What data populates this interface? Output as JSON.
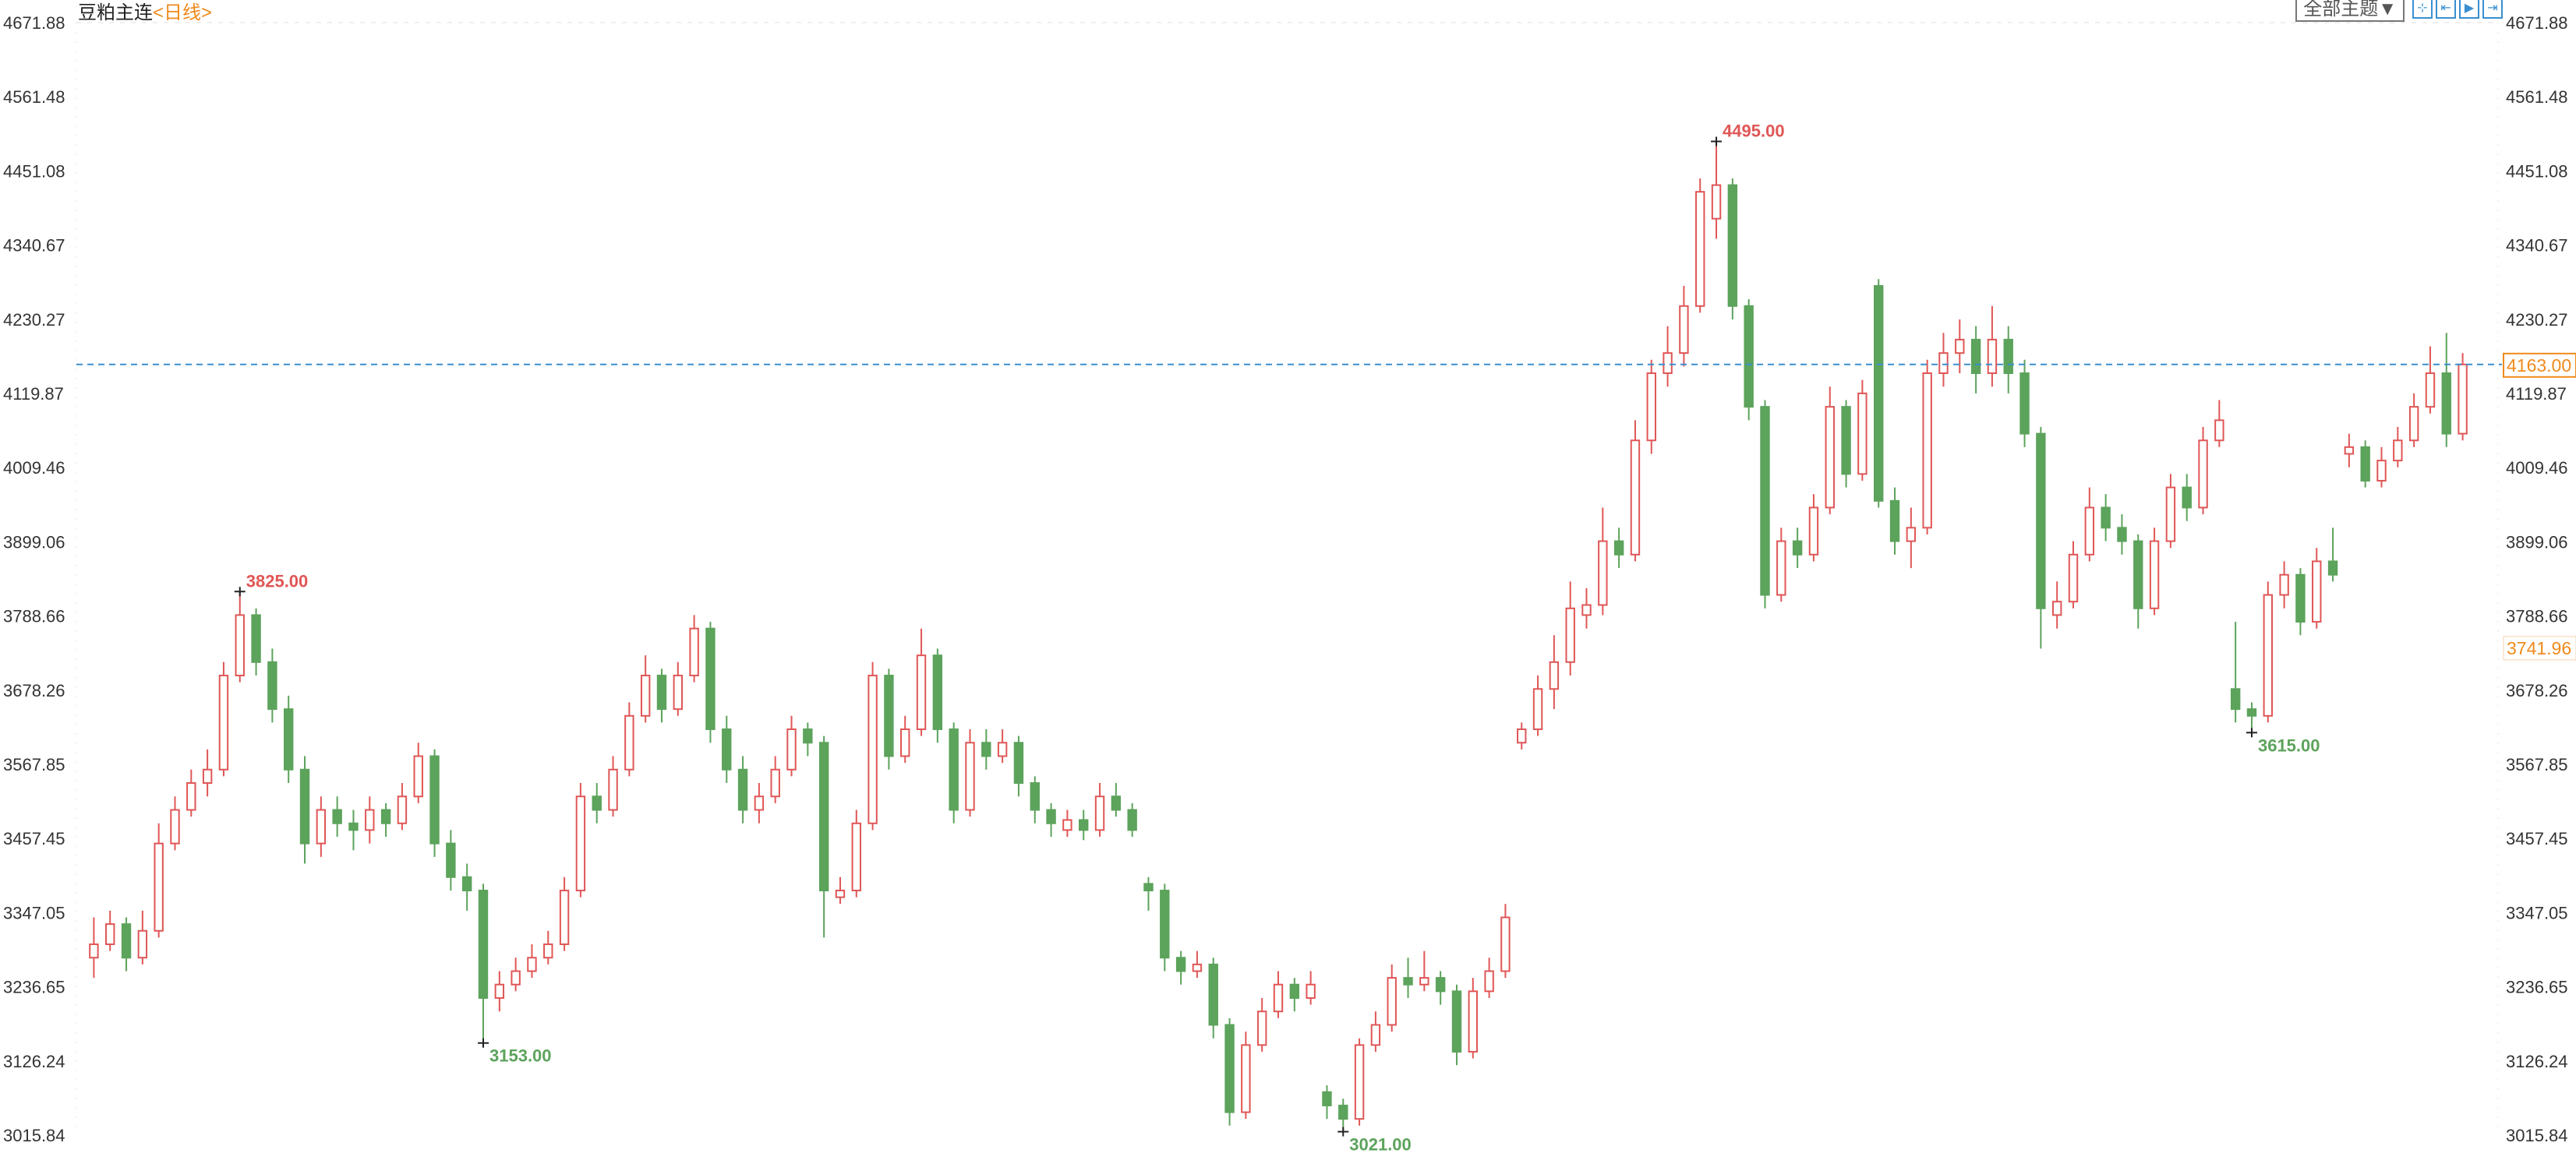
{
  "header": {
    "symbol": "豆粕主连",
    "period": "<日线>"
  },
  "toolbar": {
    "theme_label": "全部主题▼",
    "tools": [
      {
        "icon": "crosshair-icon",
        "glyph": "⊹"
      },
      {
        "icon": "zoom-range-icon",
        "glyph": "⇤"
      },
      {
        "icon": "play-step-icon",
        "glyph": "▶"
      },
      {
        "icon": "jump-latest-icon",
        "glyph": "⇥"
      }
    ]
  },
  "colors": {
    "up": "#e05656",
    "down": "#5ca35c",
    "price_line": "#3a8fd0",
    "label_orange": "#f08a1c",
    "grid": "#dddddd"
  },
  "chart_data": {
    "type": "candlestick",
    "title": "豆粕主连",
    "ylim": [
      3015.84,
      4671.88
    ],
    "yticks": [
      "4671.88",
      "4561.48",
      "4451.08",
      "4340.67",
      "4230.27",
      "4119.87",
      "4009.46",
      "3899.06",
      "3788.66",
      "3678.26",
      "3567.85",
      "3457.45",
      "3347.05",
      "3236.65",
      "3126.24",
      "3015.84"
    ],
    "grid": "horizontal-dashed",
    "last_price": {
      "value": 4163.0,
      "label": "4163.00"
    },
    "secondary_label": {
      "value": 3741.96,
      "label": "3741.96"
    },
    "annotations": [
      {
        "label": "3825.00",
        "value": 3825,
        "candle": 9,
        "kind": "high"
      },
      {
        "label": "3153.00",
        "value": 3153,
        "candle": 24,
        "kind": "low"
      },
      {
        "label": "3021.00",
        "value": 3021,
        "candle": 77,
        "kind": "low"
      },
      {
        "label": "4495.00",
        "value": 4495,
        "candle": 100,
        "kind": "high"
      },
      {
        "label": "3615.00",
        "value": 3615,
        "candle": 133,
        "kind": "low"
      }
    ],
    "candles_ohlc": [
      [
        3280,
        3340,
        3250,
        3300
      ],
      [
        3300,
        3350,
        3290,
        3330
      ],
      [
        3330,
        3340,
        3260,
        3280
      ],
      [
        3280,
        3350,
        3270,
        3320
      ],
      [
        3320,
        3480,
        3310,
        3450
      ],
      [
        3450,
        3520,
        3440,
        3500
      ],
      [
        3500,
        3560,
        3490,
        3540
      ],
      [
        3540,
        3590,
        3520,
        3560
      ],
      [
        3560,
        3720,
        3550,
        3700
      ],
      [
        3700,
        3825,
        3690,
        3790
      ],
      [
        3790,
        3800,
        3700,
        3720
      ],
      [
        3720,
        3740,
        3630,
        3650
      ],
      [
        3650,
        3670,
        3540,
        3560
      ],
      [
        3560,
        3580,
        3420,
        3450
      ],
      [
        3450,
        3520,
        3430,
        3500
      ],
      [
        3500,
        3520,
        3460,
        3480
      ],
      [
        3480,
        3500,
        3440,
        3470
      ],
      [
        3470,
        3520,
        3450,
        3500
      ],
      [
        3500,
        3510,
        3460,
        3480
      ],
      [
        3480,
        3540,
        3470,
        3520
      ],
      [
        3520,
        3600,
        3510,
        3580
      ],
      [
        3580,
        3590,
        3430,
        3450
      ],
      [
        3450,
        3470,
        3380,
        3400
      ],
      [
        3400,
        3420,
        3350,
        3380
      ],
      [
        3380,
        3390,
        3153,
        3220
      ],
      [
        3220,
        3260,
        3200,
        3240
      ],
      [
        3240,
        3280,
        3230,
        3260
      ],
      [
        3260,
        3300,
        3250,
        3280
      ],
      [
        3280,
        3320,
        3270,
        3300
      ],
      [
        3300,
        3400,
        3290,
        3380
      ],
      [
        3380,
        3540,
        3370,
        3520
      ],
      [
        3520,
        3540,
        3480,
        3500
      ],
      [
        3500,
        3580,
        3490,
        3560
      ],
      [
        3560,
        3660,
        3550,
        3640
      ],
      [
        3640,
        3730,
        3630,
        3700
      ],
      [
        3700,
        3710,
        3630,
        3650
      ],
      [
        3650,
        3720,
        3640,
        3700
      ],
      [
        3700,
        3790,
        3690,
        3770
      ],
      [
        3770,
        3780,
        3600,
        3620
      ],
      [
        3620,
        3640,
        3540,
        3560
      ],
      [
        3560,
        3580,
        3480,
        3500
      ],
      [
        3500,
        3540,
        3480,
        3520
      ],
      [
        3520,
        3580,
        3510,
        3560
      ],
      [
        3560,
        3640,
        3550,
        3620
      ],
      [
        3620,
        3630,
        3580,
        3600
      ],
      [
        3600,
        3610,
        3310,
        3380
      ],
      [
        3370,
        3400,
        3360,
        3380
      ],
      [
        3380,
        3500,
        3370,
        3480
      ],
      [
        3480,
        3720,
        3470,
        3700
      ],
      [
        3700,
        3710,
        3560,
        3580
      ],
      [
        3580,
        3640,
        3570,
        3620
      ],
      [
        3620,
        3770,
        3610,
        3730
      ],
      [
        3730,
        3740,
        3600,
        3620
      ],
      [
        3620,
        3630,
        3480,
        3500
      ],
      [
        3500,
        3620,
        3490,
        3600
      ],
      [
        3600,
        3620,
        3560,
        3580
      ],
      [
        3580,
        3620,
        3570,
        3600
      ],
      [
        3600,
        3610,
        3520,
        3540
      ],
      [
        3540,
        3550,
        3480,
        3500
      ],
      [
        3500,
        3510,
        3460,
        3480
      ],
      [
        3470,
        3500,
        3460,
        3485
      ],
      [
        3485,
        3500,
        3455,
        3470
      ],
      [
        3470,
        3540,
        3460,
        3520
      ],
      [
        3520,
        3540,
        3490,
        3500
      ],
      [
        3500,
        3510,
        3460,
        3470
      ],
      [
        3390,
        3400,
        3350,
        3380
      ],
      [
        3380,
        3390,
        3260,
        3280
      ],
      [
        3280,
        3290,
        3240,
        3260
      ],
      [
        3260,
        3290,
        3250,
        3270
      ],
      [
        3270,
        3280,
        3160,
        3180
      ],
      [
        3180,
        3190,
        3030,
        3050
      ],
      [
        3050,
        3170,
        3040,
        3150
      ],
      [
        3150,
        3220,
        3140,
        3200
      ],
      [
        3200,
        3260,
        3190,
        3240
      ],
      [
        3240,
        3250,
        3200,
        3220
      ],
      [
        3220,
        3260,
        3210,
        3240
      ],
      [
        3080,
        3090,
        3040,
        3060
      ],
      [
        3060,
        3070,
        3021,
        3040
      ],
      [
        3040,
        3160,
        3030,
        3150
      ],
      [
        3150,
        3200,
        3140,
        3180
      ],
      [
        3180,
        3270,
        3170,
        3250
      ],
      [
        3250,
        3280,
        3220,
        3240
      ],
      [
        3240,
        3290,
        3230,
        3250
      ],
      [
        3250,
        3260,
        3210,
        3230
      ],
      [
        3230,
        3240,
        3120,
        3140
      ],
      [
        3140,
        3250,
        3130,
        3230
      ],
      [
        3230,
        3280,
        3220,
        3260
      ],
      [
        3260,
        3360,
        3250,
        3340
      ],
      [
        3600,
        3630,
        3590,
        3620
      ],
      [
        3620,
        3700,
        3610,
        3680
      ],
      [
        3680,
        3760,
        3650,
        3720
      ],
      [
        3720,
        3840,
        3700,
        3800
      ],
      [
        3790,
        3830,
        3770,
        3805
      ],
      [
        3805,
        3950,
        3790,
        3900
      ],
      [
        3900,
        3920,
        3860,
        3880
      ],
      [
        3880,
        4080,
        3870,
        4050
      ],
      [
        4050,
        4170,
        4030,
        4150
      ],
      [
        4150,
        4220,
        4130,
        4180
      ],
      [
        4180,
        4280,
        4160,
        4250
      ],
      [
        4250,
        4440,
        4240,
        4420
      ],
      [
        4380,
        4495,
        4350,
        4430
      ],
      [
        4430,
        4440,
        4230,
        4250
      ],
      [
        4250,
        4260,
        4080,
        4100
      ],
      [
        4100,
        4110,
        3800,
        3820
      ],
      [
        3820,
        3920,
        3810,
        3900
      ],
      [
        3900,
        3920,
        3860,
        3880
      ],
      [
        3880,
        3970,
        3870,
        3950
      ],
      [
        3950,
        4130,
        3940,
        4100
      ],
      [
        4100,
        4110,
        3980,
        4000
      ],
      [
        4000,
        4140,
        3990,
        4120
      ],
      [
        4280,
        4290,
        3950,
        3960
      ],
      [
        3960,
        3980,
        3880,
        3900
      ],
      [
        3900,
        3950,
        3860,
        3920
      ],
      [
        3920,
        4170,
        3910,
        4150
      ],
      [
        4150,
        4210,
        4130,
        4180
      ],
      [
        4180,
        4230,
        4150,
        4200
      ],
      [
        4200,
        4220,
        4120,
        4150
      ],
      [
        4150,
        4250,
        4130,
        4200
      ],
      [
        4200,
        4220,
        4120,
        4150
      ],
      [
        4150,
        4170,
        4040,
        4060
      ],
      [
        4060,
        4070,
        3740,
        3800
      ],
      [
        3790,
        3840,
        3770,
        3810
      ],
      [
        3810,
        3900,
        3800,
        3880
      ],
      [
        3880,
        3980,
        3870,
        3950
      ],
      [
        3950,
        3970,
        3900,
        3920
      ],
      [
        3920,
        3940,
        3880,
        3900
      ],
      [
        3900,
        3910,
        3770,
        3800
      ],
      [
        3800,
        3920,
        3790,
        3900
      ],
      [
        3900,
        4000,
        3890,
        3980
      ],
      [
        3980,
        4000,
        3930,
        3950
      ],
      [
        3950,
        4070,
        3940,
        4050
      ],
      [
        4050,
        4110,
        4040,
        4080
      ],
      [
        3680,
        3780,
        3630,
        3650
      ],
      [
        3650,
        3660,
        3615,
        3640
      ],
      [
        3640,
        3840,
        3630,
        3820
      ],
      [
        3820,
        3870,
        3800,
        3850
      ],
      [
        3850,
        3860,
        3760,
        3780
      ],
      [
        3780,
        3890,
        3770,
        3870
      ],
      [
        3870,
        3920,
        3840,
        3850
      ],
      [
        4030,
        4060,
        4010,
        4040
      ],
      [
        4040,
        4050,
        3980,
        3990
      ],
      [
        3990,
        4040,
        3980,
        4020
      ],
      [
        4020,
        4070,
        4010,
        4050
      ],
      [
        4050,
        4120,
        4040,
        4100
      ],
      [
        4100,
        4190,
        4090,
        4150
      ],
      [
        4150,
        4210,
        4040,
        4060
      ],
      [
        4060,
        4180,
        4050,
        4163
      ]
    ]
  }
}
